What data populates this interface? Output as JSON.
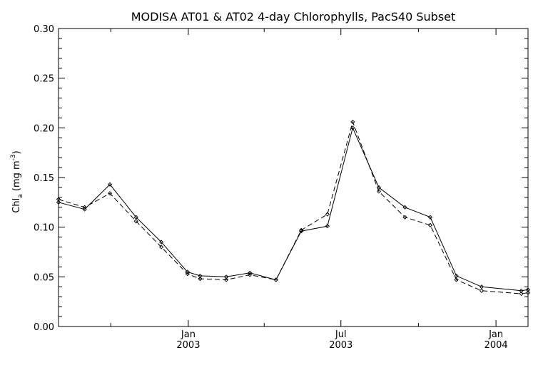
{
  "chart_data": {
    "type": "line",
    "title": "MODISA AT01 & AT02 4-day Chlorophylls, PacS40 Subset",
    "ylabel_main": "Chl",
    "ylabel_sub": "a",
    "ylabel_units_pre": " (mg m",
    "ylabel_units_sup": "-3",
    "ylabel_units_post": ")",
    "ylim": [
      0,
      0.3
    ],
    "y_ticks": [
      "0.00",
      "0.05",
      "0.10",
      "0.15",
      "0.20",
      "0.25",
      "0.30"
    ],
    "x_range": [
      "2002-07-31",
      "2004-02-08"
    ],
    "x_tick_labels": [
      {
        "date": "2003-01-01",
        "month": "Jan",
        "year": "2003"
      },
      {
        "date": "2003-07-01",
        "month": "Jul",
        "year": "2003"
      },
      {
        "date": "2004-01-01",
        "month": "Jan",
        "year": "2004"
      }
    ],
    "x_minor_ticks": [
      "2002-10-01",
      "2003-04-01",
      "2003-10-01"
    ],
    "grid": false,
    "series": [
      {
        "style": "solid",
        "x": [
          "2002-07-31",
          "2002-08-31",
          "2002-09-30",
          "2002-10-31",
          "2002-11-30",
          "2002-12-31",
          "2003-01-15",
          "2003-02-15",
          "2003-03-15",
          "2003-04-15",
          "2003-05-15",
          "2003-06-15",
          "2003-07-15",
          "2003-08-15",
          "2003-09-15",
          "2003-10-15",
          "2003-11-15",
          "2003-12-15",
          "2004-01-31",
          "2004-02-08"
        ],
        "y": [
          0.125,
          0.118,
          0.143,
          0.11,
          0.085,
          0.055,
          0.051,
          0.05,
          0.054,
          0.047,
          0.096,
          0.101,
          0.2,
          0.14,
          0.12,
          0.11,
          0.051,
          0.04,
          0.036,
          0.037
        ]
      },
      {
        "style": "dashed",
        "x": [
          "2002-07-31",
          "2002-08-31",
          "2002-09-30",
          "2002-10-31",
          "2002-11-30",
          "2002-12-31",
          "2003-01-15",
          "2003-02-15",
          "2003-03-15",
          "2003-04-15",
          "2003-05-15",
          "2003-06-15",
          "2003-07-15",
          "2003-08-15",
          "2003-09-15",
          "2003-10-15",
          "2003-11-15",
          "2003-12-15",
          "2004-01-31",
          "2004-02-08"
        ],
        "y": [
          0.128,
          0.12,
          0.134,
          0.106,
          0.08,
          0.053,
          0.048,
          0.047,
          0.052,
          0.047,
          0.097,
          0.113,
          0.206,
          0.136,
          0.11,
          0.102,
          0.047,
          0.036,
          0.033,
          0.034
        ]
      }
    ]
  }
}
